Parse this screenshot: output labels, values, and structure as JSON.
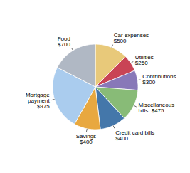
{
  "chart_data": {
    "type": "pie",
    "categories": [
      "Car expenses\n$500",
      "Utilities\n$250",
      "Contributions\n$300",
      "Miscellaneous\nbills  $475",
      "Credit card bills\n$400",
      "Savings\n$400",
      "Mortgage\npayment\n$975",
      "Food\n$700"
    ],
    "values": [
      500,
      250,
      300,
      475,
      400,
      400,
      975,
      700
    ],
    "colors": [
      "#e8c97a",
      "#c94455",
      "#8878b8",
      "#88bb77",
      "#4477aa",
      "#e8a840",
      "#aaccee",
      "#b0b8c4"
    ]
  }
}
